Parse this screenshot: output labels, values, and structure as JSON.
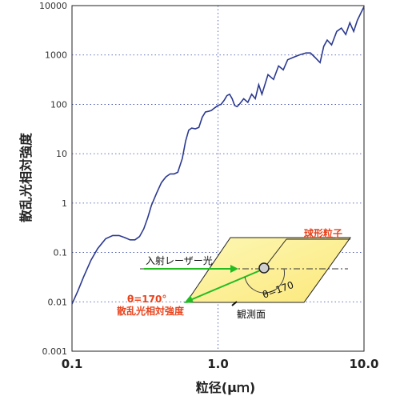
{
  "chart_data": {
    "type": "line",
    "title": "",
    "xlabel": "粒径(μｍ)",
    "ylabel": "散乱光相対強度",
    "xscale": "log",
    "yscale": "log",
    "xlim": [
      0.1,
      10.0
    ],
    "ylim": [
      0.001,
      10000
    ],
    "xticks": [
      "0.1",
      "1.0",
      "10.0"
    ],
    "yticks": [
      "0.001",
      "0.01",
      "0.1",
      "1",
      "10",
      "100",
      "1000",
      "10000"
    ],
    "grid": "dotted",
    "line_color": "#2b3990",
    "series": [
      {
        "x": [
          0.1,
          0.11,
          0.12,
          0.135,
          0.15,
          0.17,
          0.19,
          0.21,
          0.23,
          0.25,
          0.27,
          0.29,
          0.31,
          0.33,
          0.35,
          0.38,
          0.41,
          0.44,
          0.47,
          0.5,
          0.53,
          0.57,
          0.6,
          0.63,
          0.66,
          0.7,
          0.74,
          0.78,
          0.82,
          0.86,
          0.9,
          0.95,
          1.0,
          1.05,
          1.1,
          1.15,
          1.2,
          1.25,
          1.3,
          1.35,
          1.4,
          1.5,
          1.6,
          1.7,
          1.8,
          1.9,
          2.0,
          2.2,
          2.4,
          2.6,
          2.8,
          3.0,
          3.3,
          3.6,
          4.0,
          4.3,
          4.6,
          5.0,
          5.3,
          5.6,
          6.0,
          6.5,
          7.0,
          7.5,
          8.0,
          8.5,
          9.0,
          9.5,
          10.0
        ],
        "y": [
          0.009,
          0.017,
          0.032,
          0.07,
          0.12,
          0.19,
          0.22,
          0.22,
          0.2,
          0.18,
          0.18,
          0.21,
          0.3,
          0.5,
          0.9,
          1.6,
          2.6,
          3.4,
          3.9,
          3.9,
          4.2,
          8,
          18,
          30,
          33,
          32,
          34,
          55,
          70,
          72,
          75,
          85,
          95,
          100,
          120,
          150,
          160,
          130,
          95,
          90,
          100,
          130,
          110,
          160,
          130,
          250,
          160,
          400,
          320,
          600,
          500,
          800,
          900,
          1000,
          1100,
          1100,
          900,
          700,
          1500,
          2000,
          1600,
          3000,
          3500,
          2600,
          4500,
          3000,
          5000,
          7000,
          9500
        ]
      }
    ],
    "annotations": {
      "laser": "入射レーザー光",
      "particle": "球形粒子",
      "theta_left": "θ=170°",
      "intensity": "散乱光相対強度",
      "theta_diagram": "θ=170",
      "plane": "観測面"
    }
  }
}
